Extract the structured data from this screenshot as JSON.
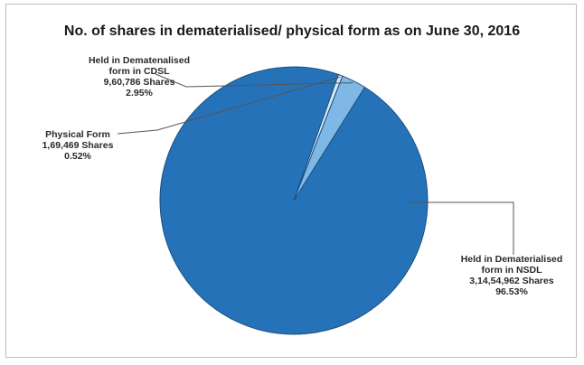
{
  "chart_data": {
    "type": "pie",
    "title": "No. of shares in dematerialised/ physical form as on June 30, 2016",
    "slices": [
      {
        "label_lines": [
          "Held in Dematerialised",
          "form in NSDL",
          "3,14,54,962 Shares",
          "96.53%"
        ],
        "category": "Held in Dematerialised form in NSDL",
        "shares": "3,14,54,962",
        "percent": 96.53,
        "color": "#2672b8"
      },
      {
        "label_lines": [
          "Held in Dematenalised",
          "form in CDSL",
          "9,60,786 Shares",
          "2.95%"
        ],
        "category": "Held in Dematenalised form in CDSL",
        "shares": "9,60,786",
        "percent": 2.95,
        "color": "#7fb8e6"
      },
      {
        "label_lines": [
          "Physical Form",
          "1,69,469 Shares",
          "0.52%"
        ],
        "category": "Physical Form",
        "shares": "1,69,469",
        "percent": 0.52,
        "color": "#d9e8f5"
      }
    ],
    "legend": "none",
    "slice_border_color": "#1a4f80"
  }
}
